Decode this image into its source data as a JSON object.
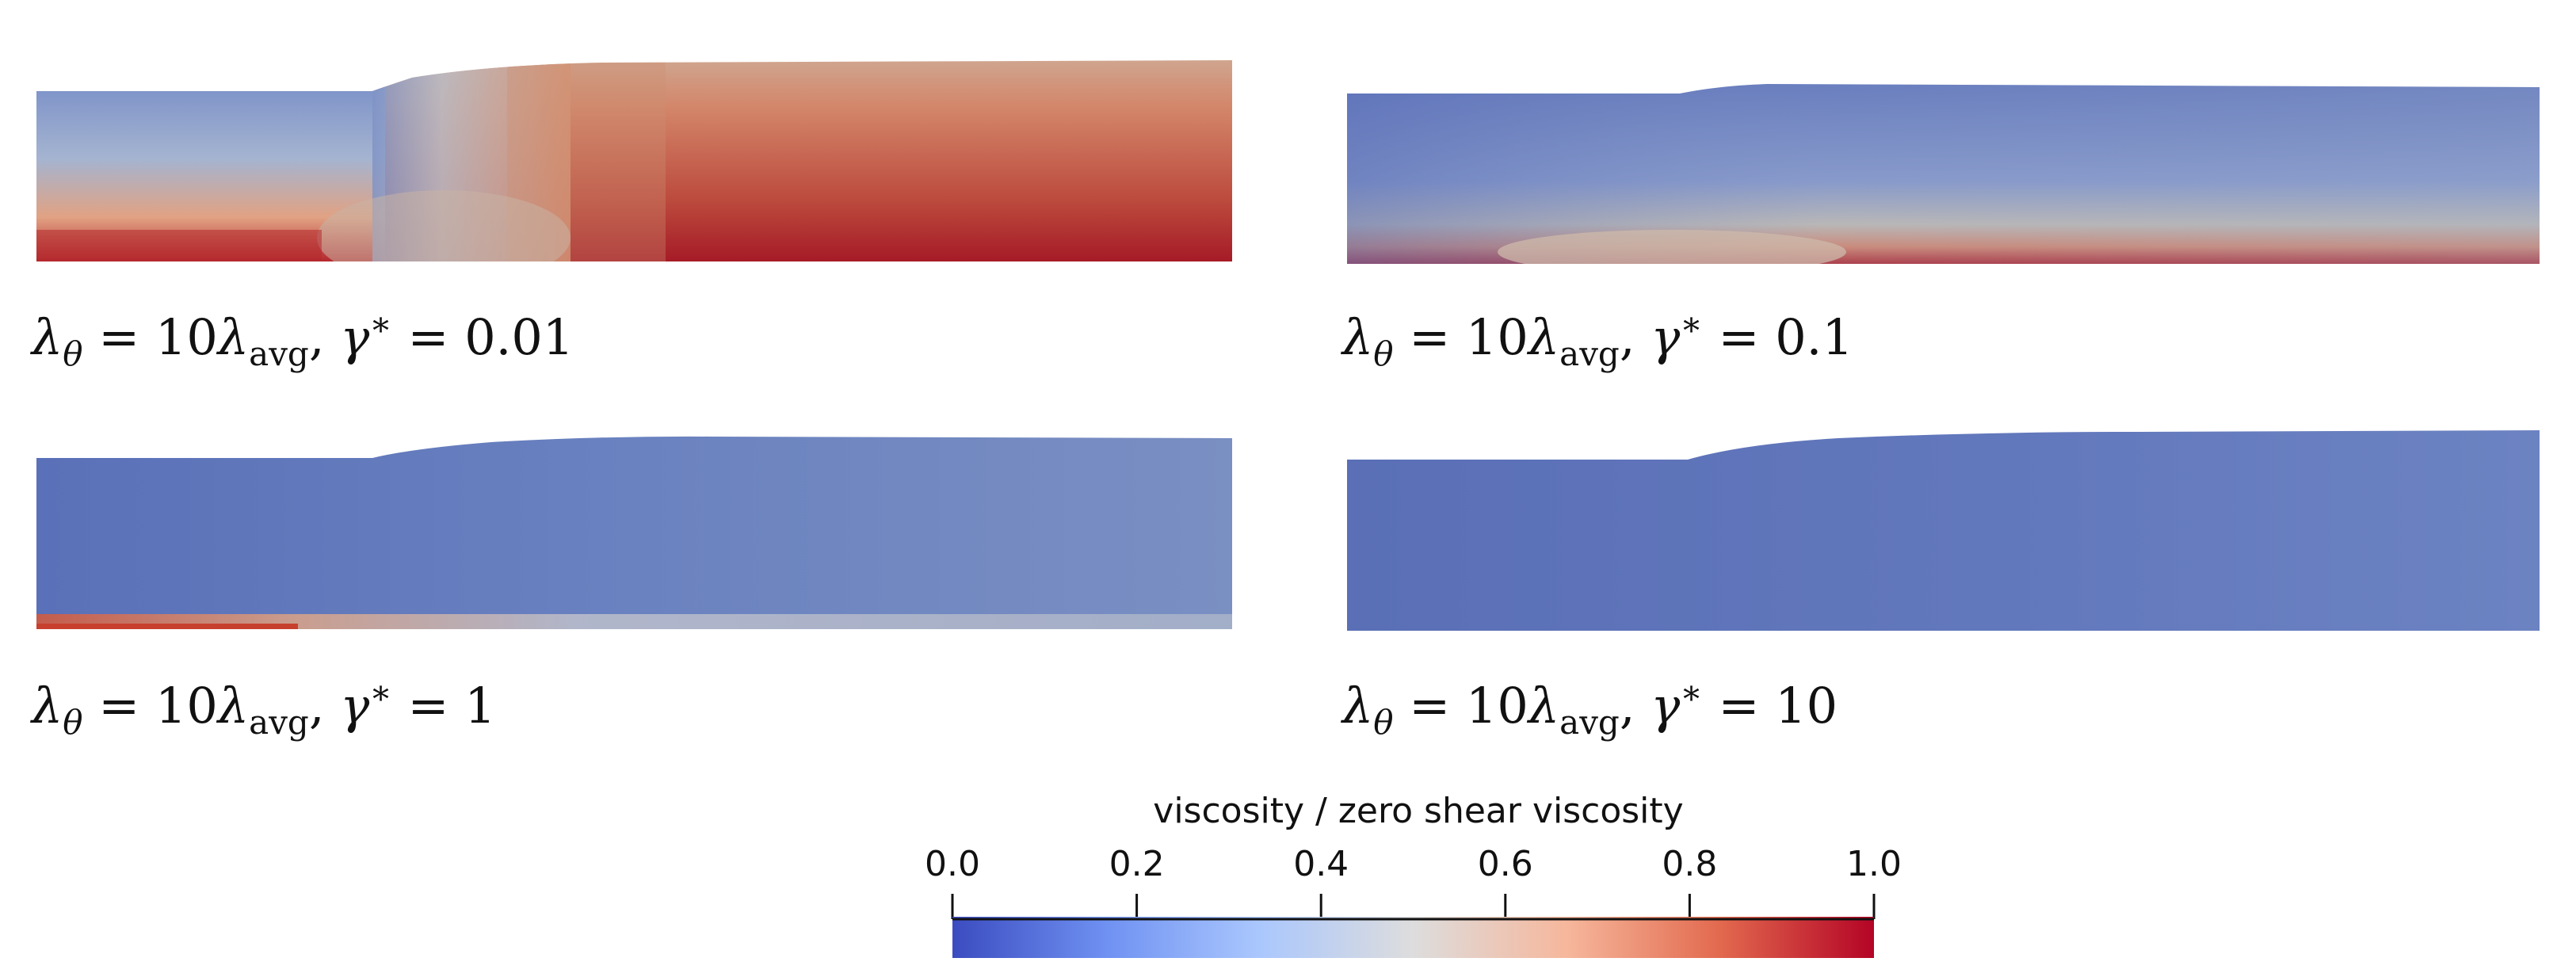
{
  "figure": {
    "panels": [
      {
        "id": "p1",
        "caption": {
          "lambda_prefix": "λ",
          "lambda_sub": "θ",
          "equals_factor": " = 10",
          "lambda2": "λ",
          "avg_sub": "avg",
          "comma": ", ",
          "gamma": "γ",
          "star": "∗",
          "gamma_value": " = 0.01"
        }
      },
      {
        "id": "p2",
        "caption": {
          "lambda_prefix": "λ",
          "lambda_sub": "θ",
          "equals_factor": " = 10",
          "lambda2": "λ",
          "avg_sub": "avg",
          "comma": ", ",
          "gamma": "γ",
          "star": "∗",
          "gamma_value": " = 0.1"
        }
      },
      {
        "id": "p3",
        "caption": {
          "lambda_prefix": "λ",
          "lambda_sub": "θ",
          "equals_factor": " = 10",
          "lambda2": "λ",
          "avg_sub": "avg",
          "comma": ", ",
          "gamma": "γ",
          "star": "∗",
          "gamma_value": " = 1"
        }
      },
      {
        "id": "p4",
        "caption": {
          "lambda_prefix": "λ",
          "lambda_sub": "θ",
          "equals_factor": " = 10",
          "lambda2": "λ",
          "avg_sub": "avg",
          "comma": ", ",
          "gamma": "γ",
          "star": "∗",
          "gamma_value": " = 10"
        }
      }
    ],
    "colorbar": {
      "title": "viscosity / zero shear viscosity",
      "ticks": [
        "0.0",
        "0.2",
        "0.4",
        "0.6",
        "0.8",
        "1.0"
      ],
      "colormap": [
        "#3b4cc0",
        "#6f91f2",
        "#aac7fd",
        "#dddddd",
        "#f6b79c",
        "#e2694e",
        "#b40426"
      ]
    },
    "colors": {
      "cool_blue": "#5b72b8",
      "light_blue": "#7a8fc0",
      "warm_red": "#b8242e",
      "dark_red": "#a01020"
    }
  }
}
